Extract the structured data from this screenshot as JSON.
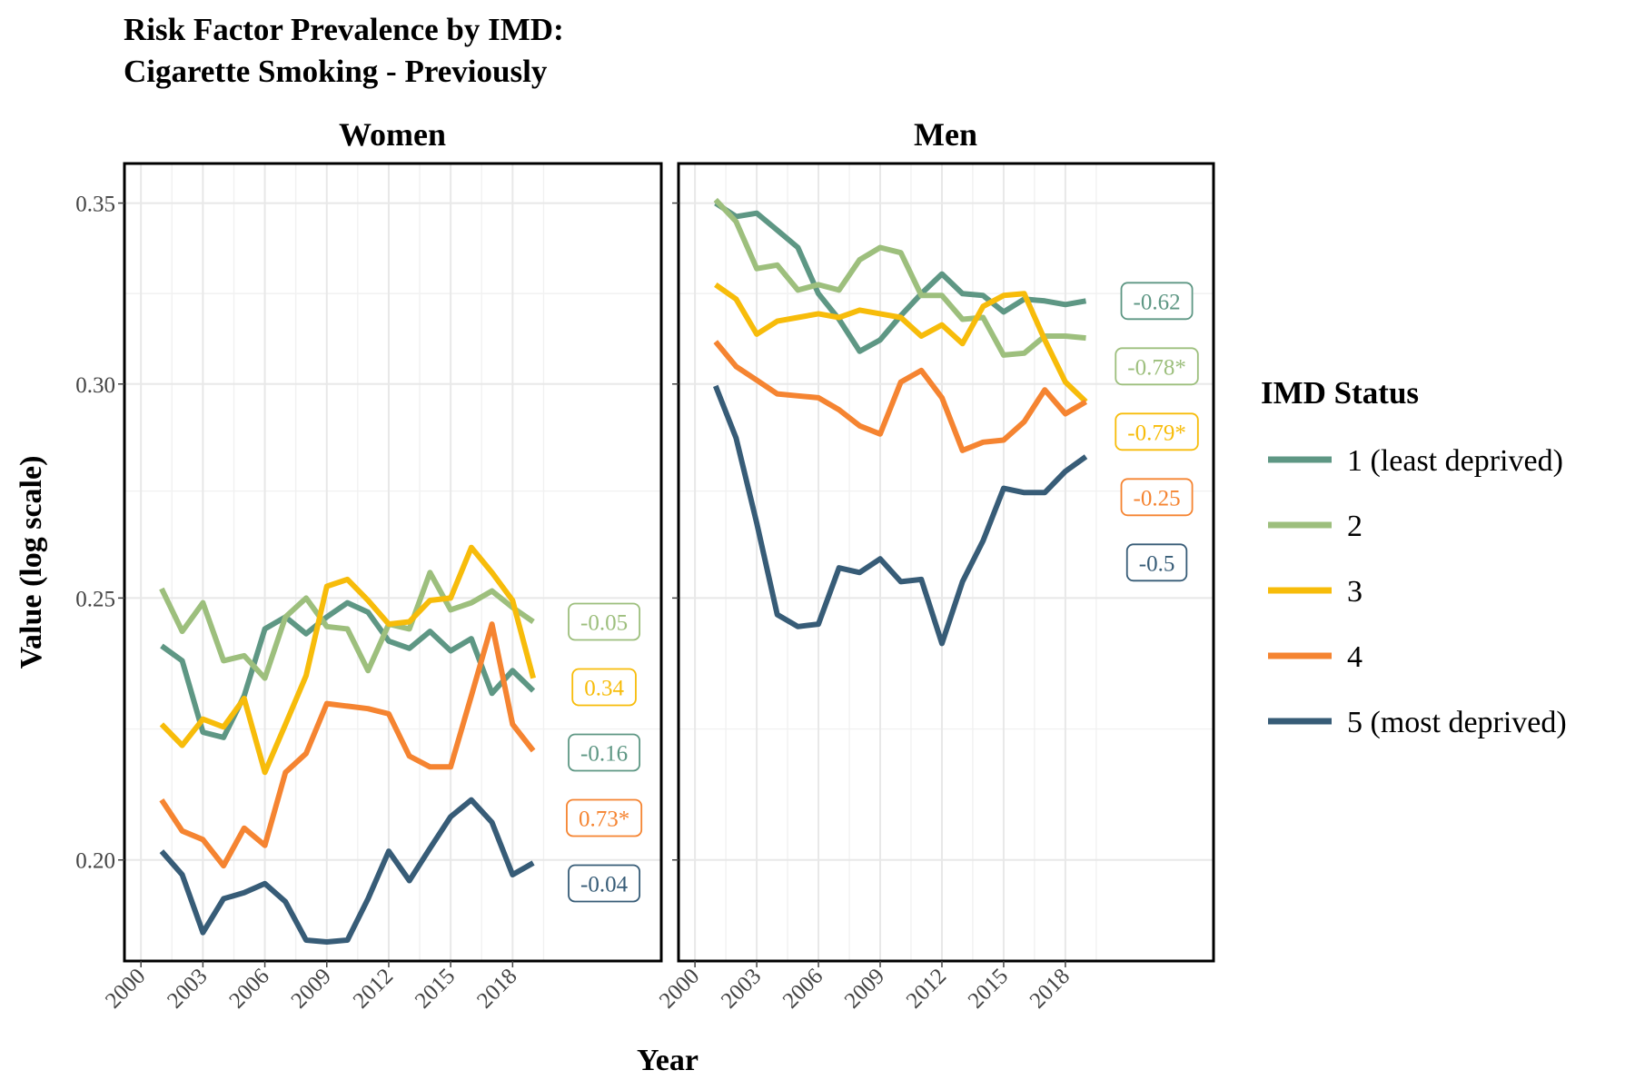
{
  "chart_data": {
    "type": "line",
    "title_line1": "Risk Factor Prevalence by IMD:",
    "title_line2": "Cigarette Smoking - Previously",
    "xlabel": "Year",
    "ylabel": "Value (log scale)",
    "y_scale": "log",
    "ylim": [
      0.1835,
      0.362
    ],
    "xlim": [
      1999.2,
      2025.2
    ],
    "y_ticks": [
      {
        "value": 0.2,
        "label": "0.20"
      },
      {
        "value": 0.25,
        "label": "0.25"
      },
      {
        "value": 0.3,
        "label": "0.30"
      },
      {
        "value": 0.35,
        "label": "0.35"
      }
    ],
    "x_ticks": [
      {
        "value": 2000,
        "label": "2000"
      },
      {
        "value": 2003,
        "label": "2003"
      },
      {
        "value": 2006,
        "label": "2006"
      },
      {
        "value": 2009,
        "label": "2009"
      },
      {
        "value": 2012,
        "label": "2012"
      },
      {
        "value": 2015,
        "label": "2015"
      },
      {
        "value": 2018,
        "label": "2018"
      }
    ],
    "grid": true,
    "legend": {
      "title": "IMD Status",
      "placement": "right",
      "entries": [
        {
          "label": "1 (least deprived)",
          "color": "#5e9784"
        },
        {
          "label": "2",
          "color": "#9dbf7d"
        },
        {
          "label": "3",
          "color": "#f7bc0a"
        },
        {
          "label": "4",
          "color": "#f58431"
        },
        {
          "label": "5 (most deprived)",
          "color": "#375c77"
        }
      ]
    },
    "years": [
      2001,
      2002,
      2003,
      2004,
      2005,
      2006,
      2007,
      2008,
      2009,
      2010,
      2011,
      2012,
      2013,
      2014,
      2015,
      2016,
      2017,
      2018,
      2019
    ],
    "panels": [
      {
        "title": "Women",
        "series": [
          {
            "values": [
              0.24,
              0.237,
              0.223,
              0.222,
              0.23,
              0.2435,
              0.246,
              0.2425,
              0.246,
              0.249,
              0.247,
              0.241,
              0.2395,
              0.243,
              0.239,
              0.2415,
              0.2305,
              0.235,
              0.231
            ],
            "color": "#5e9784",
            "annotation": "-0.16"
          },
          {
            "values": [
              0.252,
              0.243,
              0.249,
              0.237,
              0.238,
              0.2335,
              0.246,
              0.25,
              0.244,
              0.2435,
              0.235,
              0.2445,
              0.2435,
              0.2555,
              0.2475,
              0.249,
              0.2515,
              0.248,
              0.245
            ],
            "color": "#9dbf7d",
            "annotation": "-0.05"
          },
          {
            "values": [
              0.2245,
              0.2205,
              0.2255,
              0.224,
              0.2295,
              0.2155,
              0.2245,
              0.234,
              0.2525,
              0.254,
              0.2495,
              0.2445,
              0.245,
              0.2495,
              0.25,
              0.261,
              0.2555,
              0.2495,
              0.2335
            ],
            "color": "#f7bc0a",
            "annotation": "0.34"
          },
          {
            "values": [
              0.2105,
              0.205,
              0.2035,
              0.199,
              0.2055,
              0.2025,
              0.2155,
              0.219,
              0.2285,
              0.228,
              0.2275,
              0.2265,
              0.2185,
              0.2165,
              0.2165,
              0.23,
              0.2445,
              0.2245,
              0.2195
            ],
            "color": "#f58431",
            "annotation": "0.73*"
          },
          {
            "values": [
              0.2015,
              0.1975,
              0.188,
              0.1935,
              0.1945,
              0.196,
              0.193,
              0.1868,
              0.1865,
              0.1868,
              0.1935,
              0.2015,
              0.1965,
              0.202,
              0.2075,
              0.2105,
              0.2065,
              0.1975,
              0.1995
            ],
            "color": "#375c77",
            "annotation": "-0.04"
          }
        ]
      },
      {
        "title": "Men",
        "series": [
          {
            "values": [
              0.35,
              0.346,
              0.347,
              0.342,
              0.337,
              0.324,
              0.317,
              0.3085,
              0.3115,
              0.318,
              0.324,
              0.3295,
              0.324,
              0.3235,
              0.319,
              0.3225,
              0.322,
              0.321,
              0.322
            ],
            "color": "#5e9784",
            "annotation": "-0.62"
          },
          {
            "values": [
              0.351,
              0.3445,
              0.331,
              0.332,
              0.325,
              0.3265,
              0.325,
              0.3335,
              0.337,
              0.3355,
              0.3235,
              0.3235,
              0.317,
              0.3175,
              0.3075,
              0.308,
              0.3125,
              0.3125,
              0.312
            ],
            "color": "#9dbf7d",
            "annotation": "-0.78*"
          },
          {
            "values": [
              0.3265,
              0.3225,
              0.313,
              0.3165,
              0.3175,
              0.3185,
              0.3175,
              0.3195,
              0.3185,
              0.3175,
              0.3125,
              0.3155,
              0.3105,
              0.3205,
              0.3235,
              0.324,
              0.3115,
              0.3005,
              0.2955
            ],
            "color": "#f7bc0a",
            "annotation": "-0.79*"
          },
          {
            "values": [
              0.311,
              0.3045,
              0.301,
              0.2975,
              0.297,
              0.2965,
              0.2935,
              0.2895,
              0.2875,
              0.3005,
              0.3035,
              0.2965,
              0.2835,
              0.2855,
              0.286,
              0.2905,
              0.2985,
              0.2925,
              0.2955
            ],
            "color": "#f58431",
            "annotation": "-0.25"
          },
          {
            "values": [
              0.2995,
              0.2865,
              0.2665,
              0.2465,
              0.244,
              0.2445,
              0.2565,
              0.2555,
              0.2585,
              0.2535,
              0.254,
              0.2405,
              0.2535,
              0.2625,
              0.2745,
              0.2735,
              0.2735,
              0.2785,
              0.282
            ],
            "color": "#375c77",
            "annotation": "-0.5"
          }
        ]
      }
    ]
  }
}
